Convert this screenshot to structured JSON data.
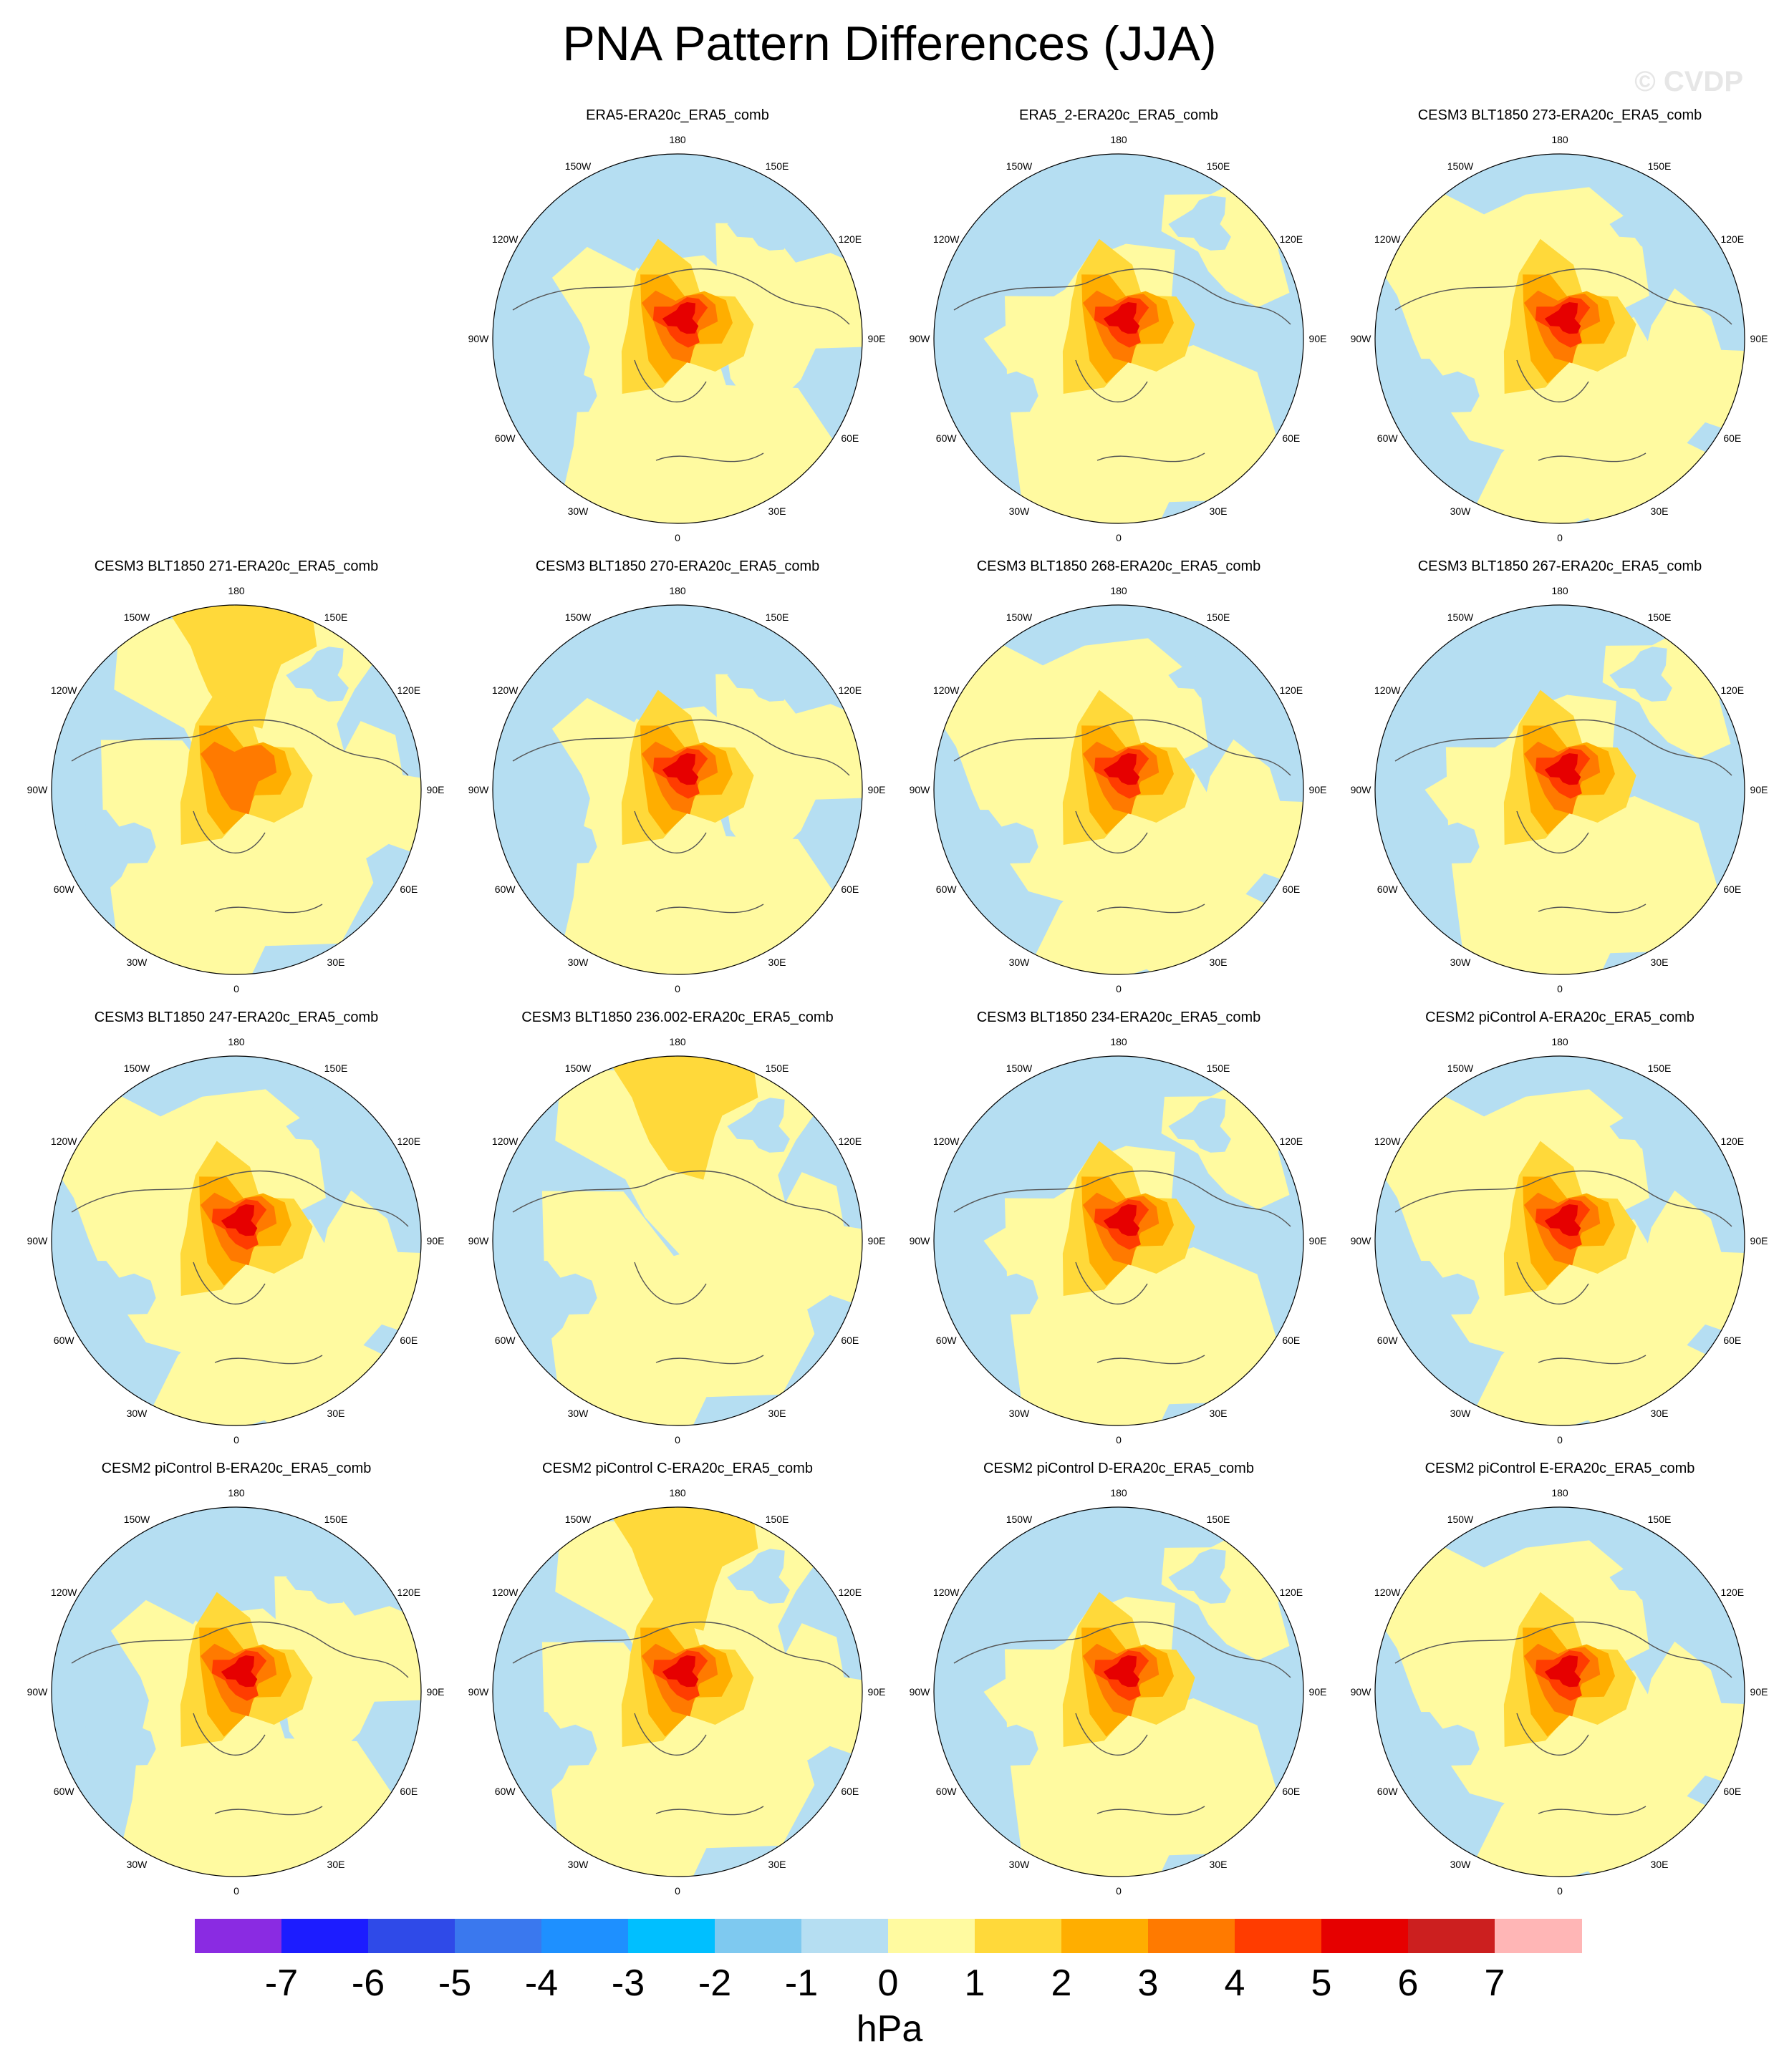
{
  "title": "PNA Pattern Differences (JJA)",
  "watermark": "© CVDP",
  "longitude_labels": [
    "180",
    "150E",
    "120E",
    "90E",
    "60E",
    "30E",
    "0",
    "30W",
    "60W",
    "90W",
    "120W",
    "150W"
  ],
  "panels": [
    {
      "title": "ERA5-ERA20c_ERA5_comb",
      "center": "red",
      "variant": 0
    },
    {
      "title": "ERA5_2-ERA20c_ERA5_comb",
      "center": "red",
      "variant": 1
    },
    {
      "title": "CESM3 BLT1850 273-ERA20c_ERA5_comb",
      "center": "red",
      "variant": 2
    },
    {
      "title": "CESM3 BLT1850 271-ERA20c_ERA5_comb",
      "center": "orange",
      "variant": 3
    },
    {
      "title": "CESM3 BLT1850 270-ERA20c_ERA5_comb",
      "center": "red",
      "variant": 0
    },
    {
      "title": "CESM3 BLT1850 268-ERA20c_ERA5_comb",
      "center": "red",
      "variant": 2
    },
    {
      "title": "CESM3 BLT1850 267-ERA20c_ERA5_comb",
      "center": "red",
      "variant": 1
    },
    {
      "title": "CESM3 BLT1850 247-ERA20c_ERA5_comb",
      "center": "red",
      "variant": 2
    },
    {
      "title": "CESM3 BLT1850 236.002-ERA20c_ERA5_comb",
      "center": "none",
      "variant": 3
    },
    {
      "title": "CESM3 BLT1850 234-ERA20c_ERA5_comb",
      "center": "red",
      "variant": 1
    },
    {
      "title": "CESM2 piControl A-ERA20c_ERA5_comb",
      "center": "red",
      "variant": 2
    },
    {
      "title": "CESM2 piControl B-ERA20c_ERA5_comb",
      "center": "red",
      "variant": 0
    },
    {
      "title": "CESM2 piControl C-ERA20c_ERA5_comb",
      "center": "red",
      "variant": 3
    },
    {
      "title": "CESM2 piControl D-ERA20c_ERA5_comb",
      "center": "red",
      "variant": 1
    },
    {
      "title": "CESM2 piControl E-ERA20c_ERA5_comb",
      "center": "red",
      "variant": 2
    }
  ],
  "colorbar": {
    "colors": [
      "#8a2be2",
      "#1c1cff",
      "#2f4ae8",
      "#3a78ee",
      "#1e90ff",
      "#00bfff",
      "#7ec9f0",
      "#b5def2",
      "#fffaa0",
      "#ffd93a",
      "#ffae00",
      "#ff7a00",
      "#ff3c00",
      "#e60000",
      "#cc1f1f",
      "#ffb6b6"
    ],
    "ticks": [
      "-7",
      "-6",
      "-5",
      "-4",
      "-3",
      "-2",
      "-1",
      "0",
      "1",
      "2",
      "3",
      "4",
      "5",
      "6",
      "7"
    ],
    "units": "hPa"
  }
}
